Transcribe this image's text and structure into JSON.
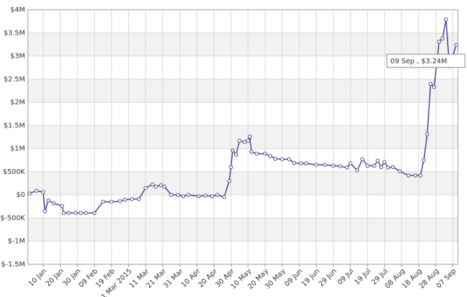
{
  "chart_data": {
    "type": "line",
    "x": [
      2,
      6,
      10,
      11,
      13,
      16,
      21,
      22,
      25,
      29,
      32,
      35,
      40,
      45,
      50,
      55,
      58,
      62,
      66,
      70,
      74,
      76,
      79,
      81,
      85,
      89,
      92,
      95,
      101,
      105,
      109,
      112,
      116,
      119,
      120,
      121,
      123,
      125,
      128,
      130,
      131,
      132,
      135,
      140,
      143,
      146,
      150,
      154,
      157,
      161,
      164,
      170,
      175,
      180,
      184,
      188,
      190,
      194,
      197,
      200,
      204,
      206,
      208,
      210,
      212,
      215,
      219,
      224,
      228,
      231,
      233,
      235,
      237,
      239,
      242,
      244,
      246,
      248,
      252
    ],
    "series": [
      {
        "color": "#4b4f8f",
        "values": [
          30000,
          90000,
          60000,
          -350000,
          -120000,
          -180000,
          -240000,
          -390000,
          -390000,
          -390000,
          -390000,
          -390000,
          -390000,
          -150000,
          -150000,
          -135000,
          -105000,
          -90000,
          -90000,
          150000,
          225000,
          180000,
          210000,
          180000,
          0,
          0,
          -30000,
          0,
          -30000,
          -15000,
          -30000,
          0,
          -45000,
          300000,
          600000,
          960000,
          870000,
          1170000,
          1140000,
          1170000,
          1260000,
          930000,
          890000,
          890000,
          840000,
          780000,
          770000,
          770000,
          690000,
          680000,
          680000,
          650000,
          650000,
          630000,
          620000,
          590000,
          680000,
          530000,
          770000,
          630000,
          630000,
          740000,
          600000,
          710000,
          590000,
          600000,
          510000,
          420000,
          420000,
          420000,
          750000,
          1310000,
          2400000,
          2330000,
          3310000,
          3380000,
          3790000,
          2780000,
          3240000
        ]
      }
    ],
    "xlim": [
      1,
      253
    ],
    "xticks": [
      {
        "value": 10,
        "label": "10 Jan"
      },
      {
        "value": 20,
        "label": "20 Jan"
      },
      {
        "value": 30,
        "label": "30 Jan"
      },
      {
        "value": 40,
        "label": "09 Feb"
      },
      {
        "value": 50,
        "label": "19 Feb"
      },
      {
        "value": 60,
        "label": "01 Mar 2015"
      },
      {
        "value": 70,
        "label": "11 Mar"
      },
      {
        "value": 80,
        "label": "21 Mar"
      },
      {
        "value": 90,
        "label": "31 Mar"
      },
      {
        "value": 100,
        "label": "10 Apr"
      },
      {
        "value": 110,
        "label": "20 Apr"
      },
      {
        "value": 120,
        "label": "30 Apr"
      },
      {
        "value": 130,
        "label": "10 May"
      },
      {
        "value": 140,
        "label": "20 May"
      },
      {
        "value": 150,
        "label": "30 May"
      },
      {
        "value": 160,
        "label": "09 Jun"
      },
      {
        "value": 170,
        "label": "19 Jun"
      },
      {
        "value": 180,
        "label": "29 Jun"
      },
      {
        "value": 190,
        "label": "09 Jul"
      },
      {
        "value": 200,
        "label": "19 Jul"
      },
      {
        "value": 210,
        "label": "29 Jul"
      },
      {
        "value": 220,
        "label": "08 Aug"
      },
      {
        "value": 230,
        "label": "18 Aug"
      },
      {
        "value": 240,
        "label": "28 Aug"
      },
      {
        "value": 250,
        "label": "07 Sep"
      }
    ],
    "ylim": [
      -1500000,
      4000000
    ],
    "yticks": [
      {
        "value": -1500000,
        "label": "$-1.5M"
      },
      {
        "value": -1000000,
        "label": "$-1M"
      },
      {
        "value": -500000,
        "label": "$-500K"
      },
      {
        "value": 0,
        "label": "$0"
      },
      {
        "value": 500000,
        "label": "$500K"
      },
      {
        "value": 1000000,
        "label": "$1M"
      },
      {
        "value": 1500000,
        "label": "$1.5M"
      },
      {
        "value": 2000000,
        "label": "$2M"
      },
      {
        "value": 2500000,
        "label": "$2.5M"
      },
      {
        "value": 3000000,
        "label": "$3M"
      },
      {
        "value": 3500000,
        "label": "$3.5M"
      },
      {
        "value": 4000000,
        "label": "$4M"
      }
    ],
    "grid": true,
    "tooltip": "09 Sep , $3.24M"
  }
}
